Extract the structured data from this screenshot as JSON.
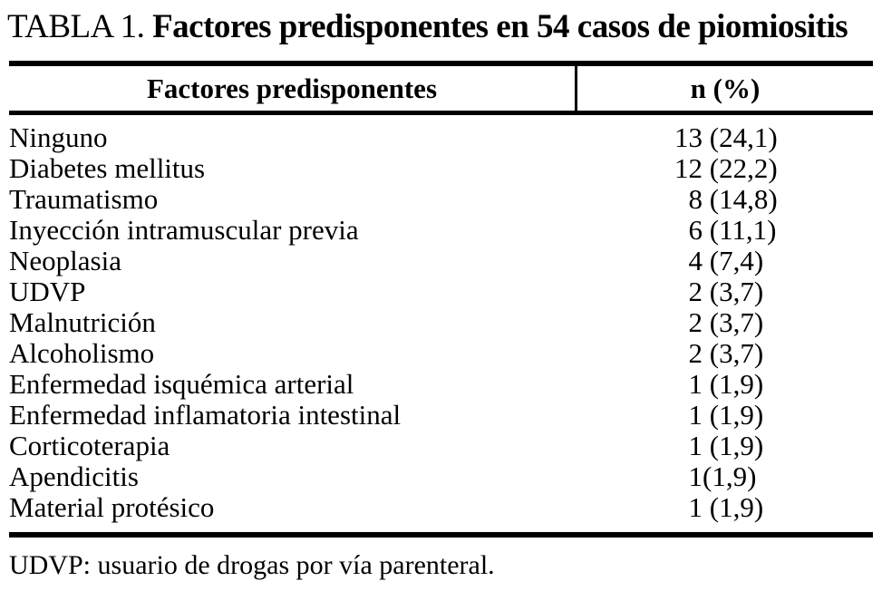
{
  "caption": {
    "label": "TABLA 1.",
    "text": "Factores predisponentes en 54 casos de piomiositis"
  },
  "table": {
    "header": {
      "factors": "Factores predisponentes",
      "n": "n (%)"
    },
    "rows": [
      {
        "factor": "Ninguno",
        "n": "13",
        "pct": " (24,1)"
      },
      {
        "factor": "Diabetes mellitus",
        "n": "12",
        "pct": " (22,2)"
      },
      {
        "factor": "Traumatismo",
        "n": "8",
        "pct": " (14,8)"
      },
      {
        "factor": "Inyección intramuscular previa",
        "n": "6",
        "pct": " (11,1)"
      },
      {
        "factor": "Neoplasia",
        "n": "4",
        "pct": " (7,4)"
      },
      {
        "factor": "UDVP",
        "n": "2",
        "pct": " (3,7)"
      },
      {
        "factor": "Malnutrición",
        "n": "2",
        "pct": " (3,7)"
      },
      {
        "factor": "Alcoholismo",
        "n": "2",
        "pct": " (3,7)"
      },
      {
        "factor": "Enfermedad isquémica arterial",
        "n": "1",
        "pct": " (1,9)"
      },
      {
        "factor": "Enfermedad inflamatoria intestinal",
        "n": "1",
        "pct": " (1,9)"
      },
      {
        "factor": "Corticoterapia",
        "n": "1",
        "pct": " (1,9)"
      },
      {
        "factor": "Apendicitis",
        "n": "1",
        "pct": "(1,9)"
      },
      {
        "factor": "Material protésico",
        "n": "1",
        "pct": " (1,9)"
      }
    ]
  },
  "footnote": "UDVP: usuario de drogas por vía parenteral.",
  "colors": {
    "text": "#000000",
    "background": "#ffffff",
    "rule": "#000000"
  }
}
